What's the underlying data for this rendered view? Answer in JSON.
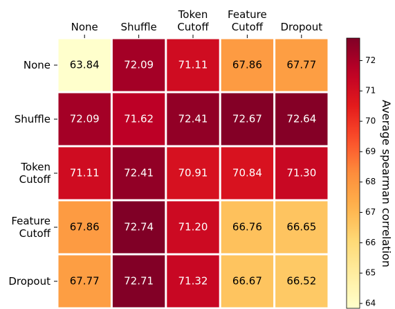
{
  "chart_data": {
    "type": "heatmap",
    "rows": [
      "None",
      "Shuffle",
      "Token\nCutoff",
      "Feature\nCutoff",
      "Dropout"
    ],
    "columns": [
      "None",
      "Shuffle",
      "Token\nCutoff",
      "Feature\nCutoff",
      "Dropout"
    ],
    "values": [
      [
        63.84,
        72.09,
        71.11,
        67.86,
        67.77
      ],
      [
        72.09,
        71.62,
        72.41,
        72.67,
        72.64
      ],
      [
        71.11,
        72.41,
        70.91,
        70.84,
        71.3
      ],
      [
        67.86,
        72.74,
        71.2,
        66.76,
        66.65
      ],
      [
        67.77,
        72.71,
        71.32,
        66.67,
        66.52
      ]
    ],
    "value_labels": [
      [
        "63.84",
        "72.09",
        "71.11",
        "67.86",
        "67.77"
      ],
      [
        "72.09",
        "71.62",
        "72.41",
        "72.67",
        "72.64"
      ],
      [
        "71.11",
        "72.41",
        "70.91",
        "70.84",
        "71.30"
      ],
      [
        "67.86",
        "72.74",
        "71.20",
        "66.76",
        "66.65"
      ],
      [
        "67.77",
        "72.71",
        "71.32",
        "66.67",
        "66.52"
      ]
    ],
    "colormap": "YlOrRd",
    "zlim": [
      63.84,
      72.74
    ],
    "zticks": [
      64,
      65,
      66,
      67,
      68,
      69,
      70,
      71,
      72
    ],
    "colorbar_label": "Average spearman correlation"
  }
}
